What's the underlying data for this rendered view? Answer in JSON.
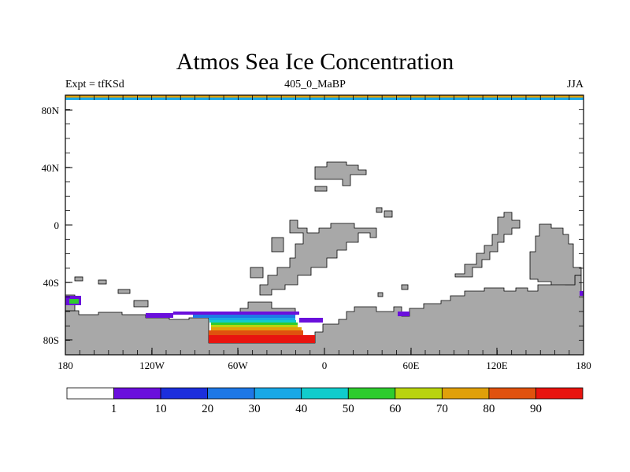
{
  "title": "Atmos Sea Ice Concentration",
  "subtitle": {
    "left": "Expt = tfKSd",
    "center": "405_0_MaBP",
    "right": "JJA"
  },
  "axes": {
    "x_ticks": [
      "180",
      "120W",
      "60W",
      "0",
      "60E",
      "120E",
      "180"
    ],
    "y_ticks": [
      "80N",
      "40N",
      "0",
      "40S",
      "80S"
    ]
  },
  "colorbar": {
    "labels": [
      "1",
      "10",
      "20",
      "30",
      "40",
      "50",
      "60",
      "70",
      "80",
      "90"
    ],
    "colors": [
      "#ffffff",
      "#6a0fdc",
      "#1c2fdc",
      "#1e78e6",
      "#19a8e6",
      "#11cccc",
      "#2ecc2e",
      "#b9d40f",
      "#e0a00a",
      "#e0520e",
      "#e8140f"
    ]
  },
  "colors": {
    "land": "#a8a8a8",
    "outline": "#000000"
  }
}
